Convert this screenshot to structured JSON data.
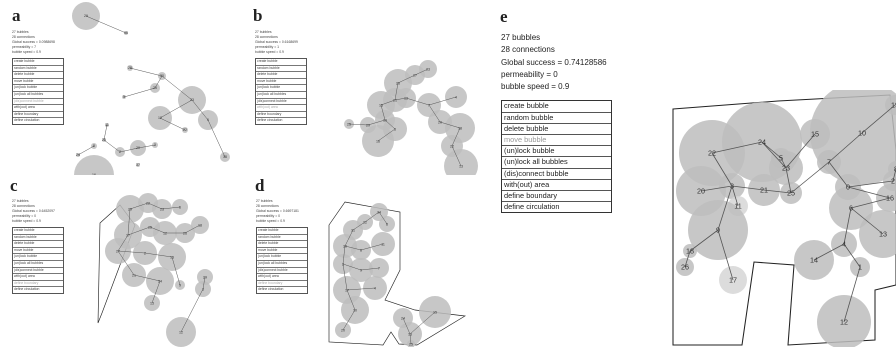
{
  "labels": {
    "a": "a",
    "b": "b",
    "c": "c",
    "d": "d",
    "e": "e"
  },
  "panel_e": {
    "bubbles": "27 bubbles",
    "connections": "28 connections",
    "success": "Global success = 0.74128586",
    "permeability": "permeability = 0",
    "speed": "bubble speed = 0.9",
    "menu": [
      "create bubble",
      "random bubble",
      "delete bubble",
      "move bubble",
      "(un)lock bubble",
      "(un)lock all bubbles",
      "(dis)connect bubble",
      "with(out) area",
      "define boundary",
      "define circulation"
    ]
  },
  "panel_a": {
    "bubbles": "27 bubbles",
    "connections": "28 connections",
    "success": "Global success = 0.0988698",
    "permeability": "permeability = 7",
    "speed": "bubble speed = 0.9"
  },
  "panel_b": {
    "bubbles": "27 bubbles",
    "connections": "28 connections",
    "success": "Global success = 0.6168699",
    "permeability": "permeability = 1",
    "speed": "bubble speed = 0.9"
  },
  "panel_c": {
    "bubbles": "27 bubbles",
    "connections": "28 connections",
    "success": "Global success = 0.6452097",
    "permeability": "permeability = 0",
    "speed": "bubble speed = 0.9"
  },
  "panel_d": {
    "bubbles": "27 bubbles",
    "connections": "28 connections",
    "success": "Global success = 0.6697181",
    "permeability": "permeability = 0",
    "speed": "bubble speed = 0.9"
  },
  "small_menu": [
    "create bubble",
    "random bubble",
    "delete bubble",
    "move bubble",
    "(un)lock bubble",
    "(un)lock all bubbles",
    "(dis)connect bubble",
    "with(out) area",
    "define boundary",
    "define circulation"
  ],
  "big_bubble_labels": [
    "22",
    "24",
    "15",
    "10",
    "19",
    "20",
    "3",
    "5",
    "23",
    "25",
    "7",
    "0",
    "2",
    "8",
    "21",
    "11",
    "16",
    "9",
    "6",
    "4",
    "13",
    "14",
    "1",
    "18",
    "26",
    "17",
    "12"
  ],
  "colors": {
    "bubble": "#bdbdbd",
    "bubble_light": "#d6d6d6",
    "line": "#555555",
    "boundary": "#222222"
  }
}
